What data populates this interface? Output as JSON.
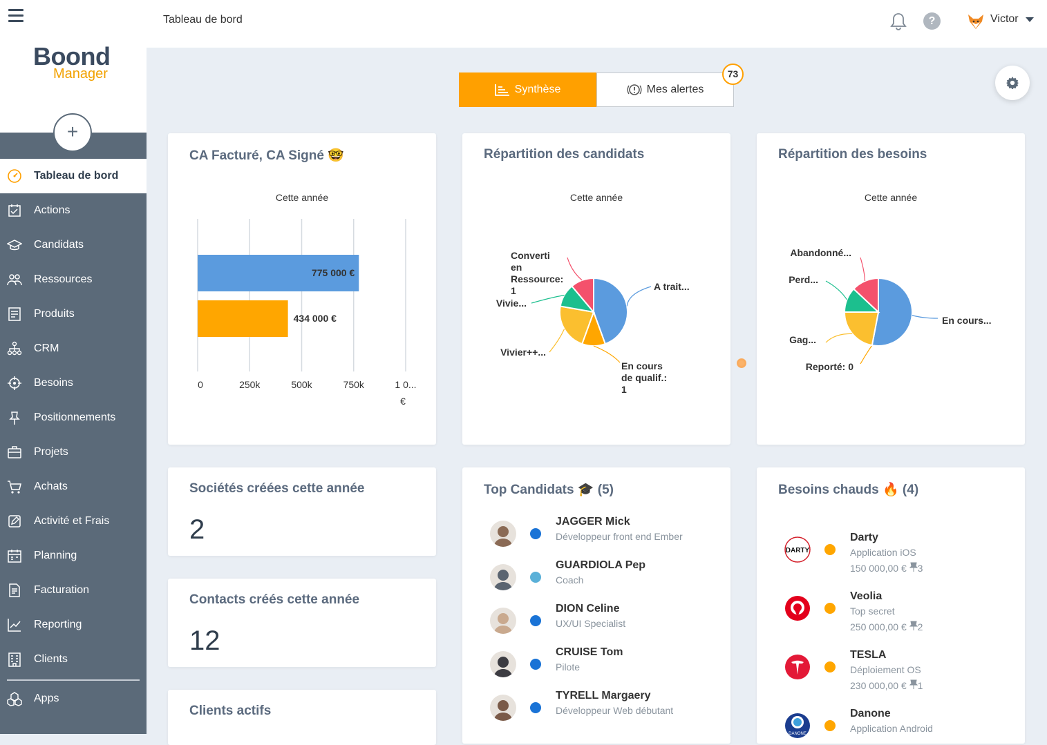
{
  "app": {
    "logo_main": "Boond",
    "logo_sub": "Manager",
    "add_label": "+"
  },
  "sidebar": {
    "items": [
      {
        "label": "Tableau de bord",
        "icon": "dashboard-icon",
        "active": true
      },
      {
        "label": "Actions",
        "icon": "actions-icon"
      },
      {
        "label": "Candidats",
        "icon": "graduation-cap-icon"
      },
      {
        "label": "Ressources",
        "icon": "people-icon"
      },
      {
        "label": "Produits",
        "icon": "products-icon"
      },
      {
        "label": "CRM",
        "icon": "crm-icon"
      },
      {
        "label": "Besoins",
        "icon": "target-icon"
      },
      {
        "label": "Positionnements",
        "icon": "pin-icon"
      },
      {
        "label": "Projets",
        "icon": "briefcase-icon"
      },
      {
        "label": "Achats",
        "icon": "cart-icon"
      },
      {
        "label": "Activité et Frais",
        "icon": "edit-icon"
      },
      {
        "label": "Planning",
        "icon": "calendar-icon"
      },
      {
        "label": "Facturation",
        "icon": "invoice-icon"
      },
      {
        "label": "Reporting",
        "icon": "reporting-icon"
      },
      {
        "label": "Clients",
        "icon": "clients-icon"
      },
      {
        "label": "Apps",
        "icon": "apps-icon"
      }
    ]
  },
  "topbar": {
    "title": "Tableau de bord",
    "user": "Victor"
  },
  "tabs": {
    "synthese": "Synthèse",
    "alertes": "Mes alertes",
    "alert_count": "73"
  },
  "cards": {
    "ca": {
      "title": "CA Facturé, CA Signé 🤓",
      "subtitle": "Cette année"
    },
    "candidats": {
      "title": "Répartition des candidats",
      "subtitle": "Cette année"
    },
    "besoins": {
      "title": "Répartition des besoins",
      "subtitle": "Cette année"
    },
    "societes": {
      "title": "Sociétés créées cette année",
      "value": "2"
    },
    "contacts": {
      "title": "Contacts créés cette année",
      "value": "12"
    },
    "clients": {
      "title": "Clients actifs"
    },
    "top": {
      "title": "Top Candidats 🎓 (5)",
      "people": [
        {
          "name": "JAGGER Mick",
          "role": "Développeur front end Ember",
          "dot": "#1a73d6"
        },
        {
          "name": "GUARDIOLA Pep",
          "role": "Coach",
          "dot": "#5ab0d8"
        },
        {
          "name": "DION Celine",
          "role": "UX/UI Specialist",
          "dot": "#1a73d6"
        },
        {
          "name": "CRUISE Tom",
          "role": "Pilote",
          "dot": "#1a73d6"
        },
        {
          "name": "TYRELL Margaery",
          "role": "Développeur Web débutant",
          "dot": "#1a73d6"
        }
      ]
    },
    "hot": {
      "title": "Besoins chauds 🔥 (4)",
      "items": [
        {
          "name": "Darty",
          "desc": "Application iOS",
          "amount": "150 000,00 € ",
          "pins": "3",
          "logo": "DARTY"
        },
        {
          "name": "Veolia",
          "desc": "Top secret",
          "amount": "250 000,00 € ",
          "pins": "2",
          "logo": "veolia"
        },
        {
          "name": "TESLA",
          "desc": "Déploiement OS",
          "amount": "230 000,00 € ",
          "pins": "1",
          "logo": "tesla"
        },
        {
          "name": "Danone",
          "desc": "Application Android",
          "amount": "",
          "pins": "",
          "logo": "DANONE"
        }
      ]
    }
  },
  "chart_data": [
    {
      "type": "bar",
      "orientation": "horizontal",
      "subtitle": "Cette année",
      "series": [
        {
          "values": [
            775000
          ],
          "color": "#5b9bde",
          "label": "775 000 €"
        },
        {
          "values": [
            434000
          ],
          "color": "#ffa600",
          "label": "434 000 €"
        }
      ],
      "x_ticks": [
        "0",
        "250k",
        "500k",
        "750k",
        "1 0..."
      ],
      "x_unit": "€",
      "xlim": [
        0,
        1000000
      ]
    },
    {
      "type": "pie",
      "subtitle": "Cette année",
      "slices": [
        {
          "label": "A trait...",
          "value": 4,
          "color": "#5b9bde"
        },
        {
          "label": "En cours de qualif.: 1",
          "value": 1,
          "color": "#ffa600"
        },
        {
          "label": "Vivier++...",
          "value": 2,
          "color": "#fbbf2f"
        },
        {
          "label": "Vivie...",
          "value": 1,
          "color": "#1cbf8e"
        },
        {
          "label": "Converti en Ressource: 1",
          "value": 1,
          "color": "#f4516c"
        }
      ]
    },
    {
      "type": "pie",
      "subtitle": "Cette année",
      "slices": [
        {
          "label": "En cours...",
          "value": 53,
          "color": "#5b9bde"
        },
        {
          "label": "Reporté: 0",
          "value": 0,
          "color": "#ffa600"
        },
        {
          "label": "Gag...",
          "value": 22,
          "color": "#fbbf2f"
        },
        {
          "label": "Perd...",
          "value": 12,
          "color": "#1cbf8e"
        },
        {
          "label": "Abandonné...",
          "value": 13,
          "color": "#f4516c"
        }
      ]
    }
  ]
}
